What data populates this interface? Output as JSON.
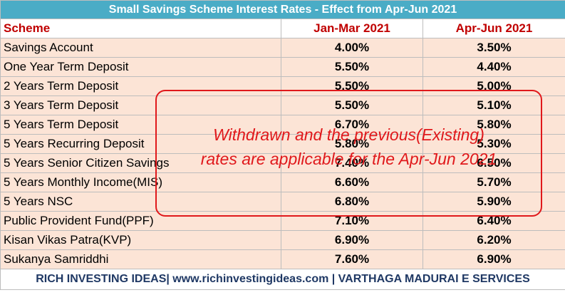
{
  "title": "Small Savings Scheme Interest Rates - Effect from Apr-Jun 2021",
  "headers": {
    "scheme": "Scheme",
    "col1": "Jan-Mar 2021",
    "col2": "Apr-Jun 2021"
  },
  "rows": [
    {
      "name": "Savings Account",
      "jan_mar": "4.00%",
      "apr_jun": "3.50%"
    },
    {
      "name": "One Year Term Deposit",
      "jan_mar": "5.50%",
      "apr_jun": "4.40%"
    },
    {
      "name": "2 Years Term Deposit",
      "jan_mar": "5.50%",
      "apr_jun": "5.00%"
    },
    {
      "name": "3 Years Term Deposit",
      "jan_mar": "5.50%",
      "apr_jun": "5.10%"
    },
    {
      "name": "5 Years Term Deposit",
      "jan_mar": "6.70%",
      "apr_jun": "5.80%"
    },
    {
      "name": "5 Years Recurring Deposit",
      "jan_mar": "5.80%",
      "apr_jun": "5.30%"
    },
    {
      "name": "5 Years Senior Citizen Savings",
      "jan_mar": "7.40%",
      "apr_jun": "6.50%"
    },
    {
      "name": "5 Years Monthly Income(MIS)",
      "jan_mar": "6.60%",
      "apr_jun": "5.70%"
    },
    {
      "name": "5 Years NSC",
      "jan_mar": "6.80%",
      "apr_jun": "5.90%"
    },
    {
      "name": "Public Provident Fund(PPF)",
      "jan_mar": "7.10%",
      "apr_jun": "6.40%"
    },
    {
      "name": "Kisan Vikas Patra(KVP)",
      "jan_mar": "6.90%",
      "apr_jun": "6.20%"
    },
    {
      "name": "Sukanya Samriddhi",
      "jan_mar": "7.60%",
      "apr_jun": "6.90%"
    }
  ],
  "footer": "RICH INVESTING IDEAS| www.richinvestingideas.com | VARTHAGA MADURAI E SERVICES",
  "annotation": {
    "line1": "Withdrawn and the previous(Existing)",
    "line2": "rates are applicable for the Apr-Jun 2021"
  },
  "colors": {
    "title_bg": "#4aacc6",
    "header_text": "#c00000",
    "row_bg": "#fce4d6",
    "annotation": "#e0181b",
    "footer_text": "#1f3864"
  }
}
